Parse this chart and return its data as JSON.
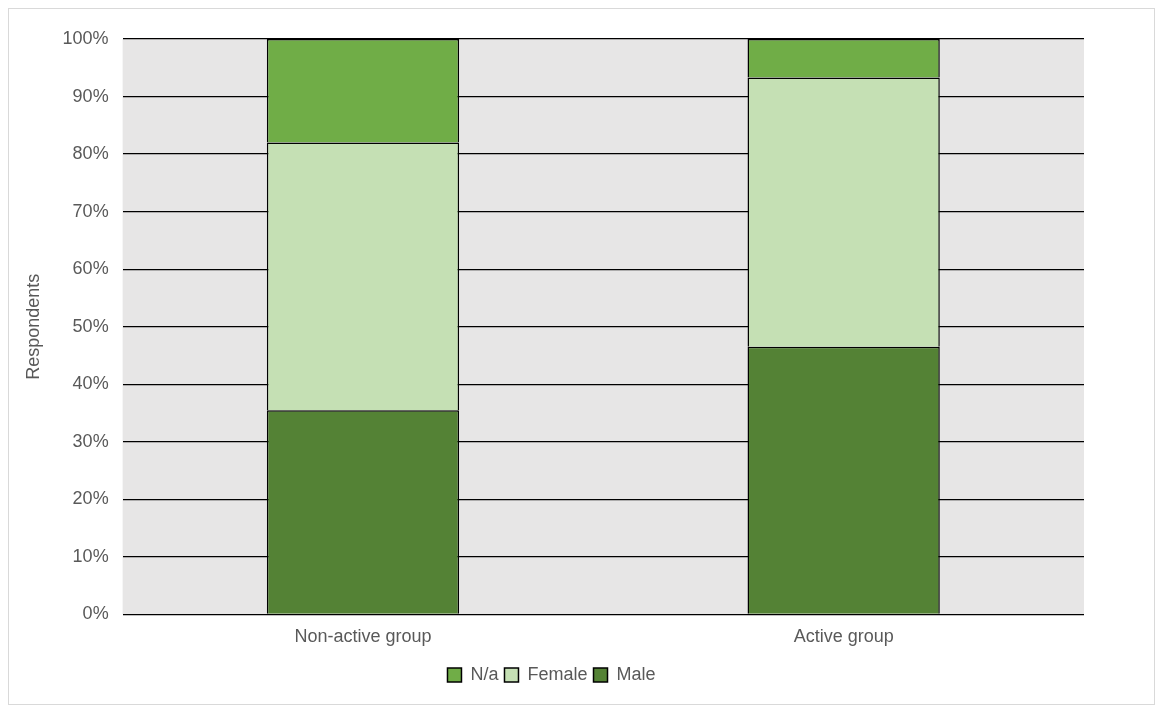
{
  "chart_data": {
    "type": "bar",
    "ylabel": "Respondents",
    "categories": [
      "Non-active group",
      "Active group"
    ],
    "series": [
      {
        "name": "Male",
        "color": "#548235",
        "values": [
          35.5,
          46.5
        ]
      },
      {
        "name": "Female",
        "color": "#c5e0b4",
        "values": [
          46.5,
          46.8
        ]
      },
      {
        "name": "N/a",
        "color": "#70ad47",
        "values": [
          18,
          6.7
        ]
      }
    ],
    "stacked": true,
    "ylim": [
      0,
      100
    ],
    "yticks": [
      {
        "value": 0,
        "label": "0%"
      },
      {
        "value": 10,
        "label": "10%"
      },
      {
        "value": 20,
        "label": "20%"
      },
      {
        "value": 30,
        "label": "30%"
      },
      {
        "value": 40,
        "label": "40%"
      },
      {
        "value": 50,
        "label": "50%"
      },
      {
        "value": 60,
        "label": "60%"
      },
      {
        "value": 70,
        "label": "70%"
      },
      {
        "value": 80,
        "label": "80%"
      },
      {
        "value": 90,
        "label": "90%"
      },
      {
        "value": 100,
        "label": "100%"
      }
    ],
    "grid": "y",
    "legend": "bottom"
  }
}
